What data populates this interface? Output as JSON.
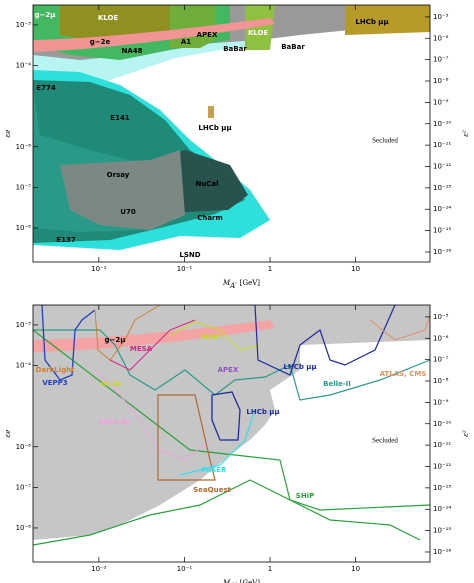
{
  "chart_data": [
    {
      "type": "region",
      "log_x": true,
      "log_y": true,
      "xlabel": {
        "symbol": "M",
        "subscript": "A′",
        "unit": "[GeV]"
      },
      "ylabel": "εe",
      "y2label": "ε²",
      "text": "Secluded",
      "xlim": [
        0.0017,
        74
      ],
      "ylim": [
        1.45e-09,
        0.0031
      ],
      "y2lim": [
        3.4e-17,
        3.6e-05
      ],
      "xticks": [
        {
          "value": 0.01,
          "label": "10⁻²"
        },
        {
          "value": 0.1,
          "label": "10⁻¹"
        },
        1,
        10
      ],
      "yticks": [
        {
          "value": 0.001,
          "label": "10⁻³"
        },
        {
          "value": 0.0001,
          "label": "10⁻⁴"
        },
        {
          "value": 1e-06,
          "label": "10⁻⁶"
        },
        {
          "value": 1e-07,
          "label": "10⁻⁷"
        },
        {
          "value": 1e-08,
          "label": "10⁻⁸"
        }
      ],
      "y2ticks": [
        {
          "value": 1e-05,
          "label": "10⁻⁵"
        },
        {
          "value": 1e-06,
          "label": "10⁻⁶"
        },
        {
          "value": 1e-07,
          "label": "10⁻⁷"
        },
        {
          "value": 1e-08,
          "label": "10⁻⁸"
        },
        {
          "value": 1e-09,
          "label": "10⁻⁹"
        },
        {
          "value": 1e-10,
          "label": "10⁻¹⁰"
        },
        {
          "value": 1e-11,
          "label": "10⁻¹¹"
        },
        {
          "value": 1e-12,
          "label": "10⁻¹²"
        },
        {
          "value": 1e-13,
          "label": "10⁻¹³"
        },
        {
          "value": 1e-14,
          "label": "10⁻¹⁴"
        },
        {
          "value": 1e-15,
          "label": "10⁻¹⁵"
        },
        {
          "value": 1e-16,
          "label": "10⁻¹⁶"
        }
      ],
      "annotations": [
        "g−2μ",
        "KLOE",
        "g−2e",
        "NA48",
        "A1",
        "APEX",
        "BaBar",
        "KLOE",
        "BaBar",
        "LHCb μμ",
        "E774",
        "E141",
        "LHCb μμ",
        "Orsay",
        "NuCal",
        "U70",
        "Charm",
        "E137",
        "LSND"
      ]
    },
    {
      "type": "region",
      "log_x": true,
      "log_y": true,
      "xlabel": {
        "symbol": "M",
        "subscript": "A′",
        "unit": "[GeV]"
      },
      "ylabel": "εe",
      "y2label": "ε²",
      "text": "Secluded",
      "xlim": [
        0.0017,
        74
      ],
      "ylim": [
        1.45e-09,
        0.0031
      ],
      "y2lim": [
        3.4e-17,
        3.6e-05
      ],
      "xticks": [
        {
          "value": 0.01,
          "label": "10⁻²"
        },
        {
          "value": 0.1,
          "label": "10⁻¹"
        },
        1,
        10
      ],
      "yticks": [
        {
          "value": 0.001,
          "label": "10⁻³"
        },
        {
          "value": 0.0001,
          "label": "10⁻⁴"
        },
        {
          "value": 1e-06,
          "label": "10⁻⁶"
        },
        {
          "value": 1e-07,
          "label": "10⁻⁷"
        },
        {
          "value": 1e-08,
          "label": "10⁻⁸"
        }
      ],
      "y2ticks": [
        {
          "value": 1e-05,
          "label": "10⁻⁵"
        },
        {
          "value": 1e-06,
          "label": "10⁻⁶"
        },
        {
          "value": 1e-07,
          "label": "10⁻⁷"
        },
        {
          "value": 1e-08,
          "label": "10⁻⁸"
        },
        {
          "value": 1e-09,
          "label": "10⁻⁹"
        },
        {
          "value": 1e-10,
          "label": "10⁻¹⁰"
        },
        {
          "value": 1e-11,
          "label": "10⁻¹¹"
        },
        {
          "value": 1e-12,
          "label": "10⁻¹²"
        },
        {
          "value": 1e-13,
          "label": "10⁻¹³"
        },
        {
          "value": 1e-14,
          "label": "10⁻¹⁴"
        },
        {
          "value": 1e-15,
          "label": "10⁻¹⁵"
        },
        {
          "value": 1e-16,
          "label": "10⁻¹⁶"
        }
      ],
      "annotations": [
        "g−2μ",
        "MESA",
        "MAMI",
        "DarkLight",
        "VEPP3",
        "Mu3e",
        "APEX",
        "LHCb μμ",
        "Belle-II",
        "ATLAS, CMS",
        "LHCb D*",
        "LHCb μμ",
        "FASER",
        "SeaQuest",
        "SHiP"
      ]
    }
  ]
}
